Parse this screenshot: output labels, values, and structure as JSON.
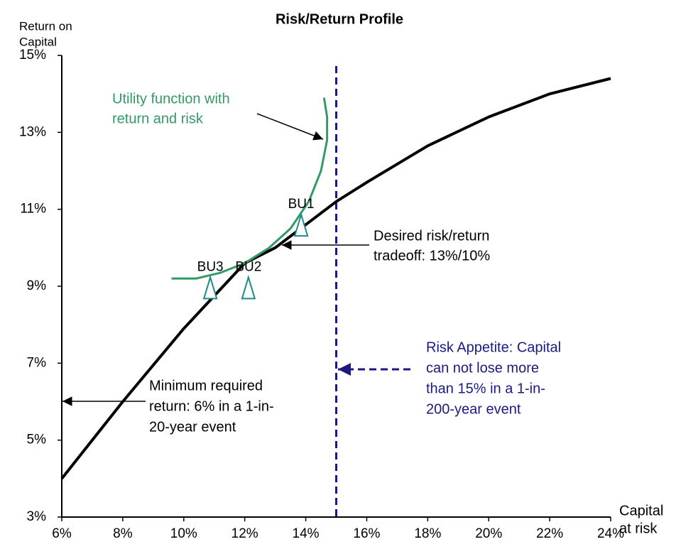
{
  "chart_data": {
    "type": "line",
    "title": "Risk/Return Profile",
    "y_label": [
      "Return on",
      "Capital"
    ],
    "x_label": [
      "Capital",
      "at risk"
    ],
    "xlim": [
      6,
      24
    ],
    "ylim": [
      3,
      15
    ],
    "xticks": [
      {
        "value": 6,
        "label": "6%"
      },
      {
        "value": 8,
        "label": "8%"
      },
      {
        "value": 10,
        "label": "10%"
      },
      {
        "value": 12,
        "label": "12%"
      },
      {
        "value": 14,
        "label": "14%"
      },
      {
        "value": 16,
        "label": "16%"
      },
      {
        "value": 18,
        "label": "18%"
      },
      {
        "value": 20,
        "label": "20%"
      },
      {
        "value": 22,
        "label": "22%"
      },
      {
        "value": 24,
        "label": "24%"
      }
    ],
    "yticks": [
      {
        "value": 3,
        "label": "3%"
      },
      {
        "value": 5,
        "label": "5%"
      },
      {
        "value": 7,
        "label": "7%"
      },
      {
        "value": 9,
        "label": "9%"
      },
      {
        "value": 11,
        "label": "11%"
      },
      {
        "value": 13,
        "label": "13%"
      },
      {
        "value": 15,
        "label": "15%"
      }
    ],
    "curve": {
      "color": "#000000",
      "x": [
        6,
        8,
        10,
        12,
        13,
        14,
        15,
        16,
        18,
        20,
        22,
        24
      ],
      "y": [
        4,
        6,
        7.9,
        9.6,
        10,
        10.6,
        11.2,
        11.7,
        12.65,
        13.4,
        14,
        14.4
      ]
    },
    "utility": {
      "color": "#339966",
      "x": [
        9.6,
        10.4,
        11.2,
        12,
        12.8,
        13.5,
        14.1,
        14.5,
        14.7,
        14.7,
        14.6
      ],
      "y": [
        9.2,
        9.2,
        9.35,
        9.6,
        10,
        10.5,
        11.2,
        12,
        12.8,
        13.4,
        13.9
      ]
    },
    "units": {
      "color": "#1f8a8a",
      "labels": [
        "BU1",
        "BU2",
        "BU3"
      ],
      "x": [
        13.85,
        12.12,
        10.87
      ],
      "y": [
        10.53,
        8.9,
        8.9
      ]
    },
    "risk_appetite": {
      "x": 15,
      "color": "#1a1a80"
    },
    "annotations": {
      "utility": [
        "Utility function with",
        "return and risk"
      ],
      "desired": [
        "Desired risk/return",
        "tradeoff: 13%/10%"
      ],
      "minimum": [
        "Minimum required",
        "return: 6% in a 1-in-",
        "20-year event"
      ],
      "appetite": [
        "Risk Appetite: Capital",
        "can not lose more",
        "than 15% in a 1-in-",
        "200-year event"
      ]
    }
  }
}
